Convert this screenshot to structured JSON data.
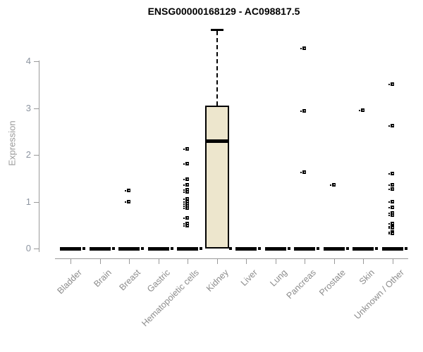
{
  "chart_data": {
    "type": "boxplot",
    "title": "ENSG00000168129 - AC098817.5",
    "ylabel": "Expression",
    "xlabel": "",
    "ylim": [
      0,
      4.8
    ],
    "yticks": [
      0,
      1,
      2,
      3,
      4
    ],
    "grid": false,
    "legend": false,
    "categories": [
      "Bladder",
      "Brain",
      "Breast",
      "Gastric",
      "Hematopoietic cells",
      "Kidney",
      "Liver",
      "Lung",
      "Pancreas",
      "Prostate",
      "Skin",
      "Unknown / Other"
    ],
    "boxes": [
      {
        "category": "Bladder",
        "low": 0,
        "q1": 0,
        "median": 0,
        "q3": 0,
        "high": 0,
        "zero_marker": true,
        "outliers": []
      },
      {
        "category": "Brain",
        "low": 0,
        "q1": 0,
        "median": 0,
        "q3": 0,
        "high": 0,
        "zero_marker": true,
        "outliers": []
      },
      {
        "category": "Breast",
        "low": 0,
        "q1": 0,
        "median": 0,
        "q3": 0,
        "high": 0,
        "zero_marker": true,
        "outliers": [
          1.24,
          1.0
        ]
      },
      {
        "category": "Gastric",
        "low": 0,
        "q1": 0,
        "median": 0,
        "q3": 0,
        "high": 0,
        "zero_marker": true,
        "outliers": []
      },
      {
        "category": "Hematopoietic cells",
        "low": 0,
        "q1": 0,
        "median": 0,
        "q3": 0,
        "high": 0,
        "zero_marker": true,
        "outliers": [
          2.12,
          1.8,
          1.47,
          1.35,
          1.25,
          1.21,
          1.05,
          1.0,
          0.95,
          0.9,
          0.85,
          0.65,
          0.52,
          0.48
        ]
      },
      {
        "category": "Kidney",
        "low": 0,
        "q1": 0,
        "median": 2.3,
        "q3": 3.05,
        "high": 4.68,
        "zero_marker": true,
        "outliers": []
      },
      {
        "category": "Liver",
        "low": 0,
        "q1": 0,
        "median": 0,
        "q3": 0,
        "high": 0,
        "zero_marker": true,
        "outliers": []
      },
      {
        "category": "Lung",
        "low": 0,
        "q1": 0,
        "median": 0,
        "q3": 0,
        "high": 0,
        "zero_marker": true,
        "outliers": []
      },
      {
        "category": "Pancreas",
        "low": 0,
        "q1": 0,
        "median": 0,
        "q3": 0,
        "high": 0,
        "zero_marker": true,
        "outliers": [
          4.27,
          2.93,
          1.63
        ]
      },
      {
        "category": "Prostate",
        "low": 0,
        "q1": 0,
        "median": 0,
        "q3": 0,
        "high": 0,
        "zero_marker": true,
        "outliers": [
          1.36
        ]
      },
      {
        "category": "Skin",
        "low": 0,
        "q1": 0,
        "median": 0,
        "q3": 0,
        "high": 0,
        "zero_marker": true,
        "outliers": [
          2.95
        ]
      },
      {
        "category": "Unknown / Other",
        "low": 0,
        "q1": 0,
        "median": 0,
        "q3": 0,
        "high": 0,
        "zero_marker": true,
        "outliers": [
          3.5,
          2.62,
          1.6,
          1.36,
          1.26,
          1.0,
          0.87,
          0.75,
          0.71,
          0.53,
          0.47,
          0.43,
          0.35,
          0.31
        ]
      }
    ],
    "colors": {
      "box_fill": "#EDE6CD",
      "box_line": "#000000",
      "axis": "#9A9A9A",
      "tick_label": "#8C8C8C",
      "title": "#000000",
      "background": "#FFFFFF"
    }
  }
}
